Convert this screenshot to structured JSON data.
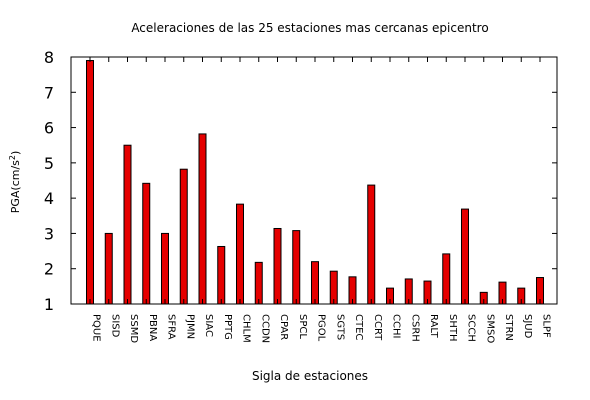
{
  "chart_data": {
    "type": "bar",
    "title": "Aceleraciones de las 25 estaciones mas cercanas epicentro",
    "xlabel": "Sigla de estaciones",
    "ylabel_main": "PGA(cm/s",
    "ylabel_sup": "2",
    "ylabel_close": ")",
    "ylim": [
      1,
      8
    ],
    "yticks": [
      "1",
      "2",
      "3",
      "4",
      "5",
      "6",
      "7",
      "8"
    ],
    "categories": [
      "PQUE",
      "SISD",
      "SSMD",
      "PBNA",
      "SFRA",
      "PJMN",
      "SIAC",
      "PPTG",
      "CHLM",
      "CCDN",
      "CPAR",
      "SPCL",
      "PGOL",
      "SGTS",
      "CTEC",
      "CCRT",
      "CCHI",
      "CSRH",
      "RALT",
      "SHTH",
      "SCCH",
      "SMSO",
      "STRN",
      "SJUD",
      "SLPF"
    ],
    "values": [
      7.9,
      3.0,
      5.5,
      4.42,
      3.0,
      4.82,
      5.82,
      2.63,
      3.83,
      2.18,
      3.14,
      3.08,
      2.2,
      1.93,
      1.77,
      4.37,
      1.45,
      1.71,
      1.65,
      2.42,
      3.69,
      1.33,
      1.62,
      1.45,
      1.75
    ],
    "bar_color": "#e50000",
    "grid": false,
    "legend": false
  }
}
